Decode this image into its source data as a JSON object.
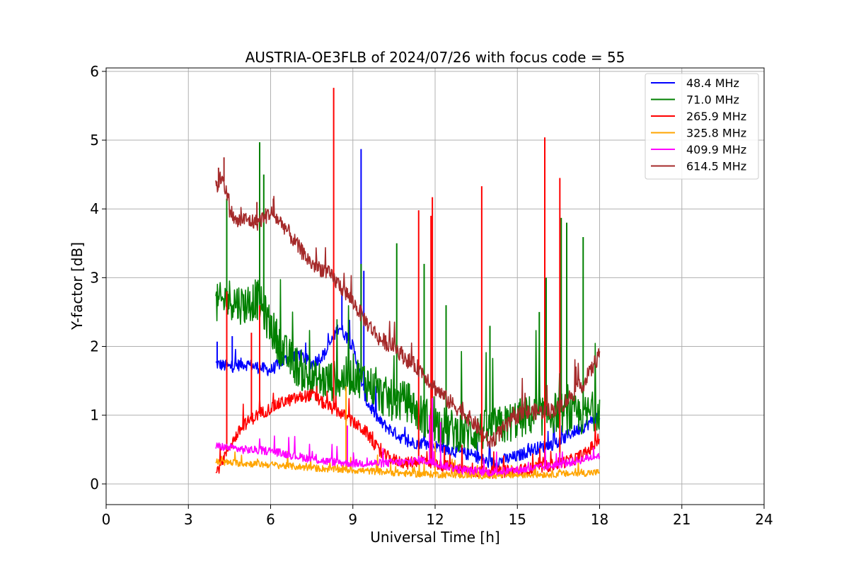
{
  "chart_data": {
    "type": "line",
    "title": "AUSTRIA-OE3FLB of 2024/07/26 with focus code = 55",
    "xlabel": "Universal Time [h]",
    "ylabel": "Y-factor [dB]",
    "xlim": [
      0,
      24
    ],
    "ylim": [
      -0.3,
      6.05
    ],
    "xticks": [
      0,
      3,
      6,
      9,
      12,
      15,
      18,
      21,
      24
    ],
    "xtick_labels": [
      "0",
      "3",
      "6",
      "9",
      "12",
      "15",
      "18",
      "21",
      "24"
    ],
    "yticks": [
      0,
      1,
      2,
      3,
      4,
      5,
      6
    ],
    "ytick_labels": [
      "0",
      "1",
      "2",
      "3",
      "4",
      "5",
      "6"
    ],
    "grid": true,
    "legend_position": "top-right",
    "series": [
      {
        "name": "48.4 MHz",
        "legend_label": " 48.4 MHz",
        "color": "#0000ff",
        "noise": 0.09,
        "x": [
          4.0,
          4.5,
          5.0,
          5.5,
          6.0,
          6.5,
          7.0,
          7.5,
          8.0,
          8.5,
          9.0,
          9.5,
          10.0,
          10.5,
          11.0,
          11.5,
          12.0,
          12.5,
          13.0,
          13.5,
          14.0,
          14.5,
          15.0,
          15.5,
          16.0,
          16.5,
          17.0,
          17.5,
          18.0
        ],
        "y": [
          1.75,
          1.7,
          1.75,
          1.7,
          1.65,
          1.8,
          1.9,
          1.75,
          1.9,
          2.3,
          2.0,
          1.2,
          0.9,
          0.75,
          0.6,
          0.6,
          0.55,
          0.5,
          0.45,
          0.4,
          0.3,
          0.35,
          0.4,
          0.5,
          0.55,
          0.6,
          0.75,
          0.85,
          1.0
        ],
        "spikes": [
          [
            9.3,
            4.87
          ],
          [
            4.05,
            2.07
          ],
          [
            9.4,
            3.1
          ],
          [
            8.6,
            2.8
          ],
          [
            4.6,
            2.15
          ]
        ]
      },
      {
        "name": "71.0 MHz",
        "legend_label": " 71.0 MHz",
        "color": "#008000",
        "noise": 0.3,
        "x": [
          4.0,
          4.5,
          5.0,
          5.5,
          6.0,
          6.5,
          7.0,
          7.5,
          8.0,
          8.5,
          9.0,
          9.5,
          10.0,
          10.5,
          11.0,
          11.5,
          12.0,
          12.5,
          13.0,
          13.5,
          14.0,
          14.5,
          15.0,
          15.5,
          16.0,
          16.5,
          17.0,
          17.5,
          18.0
        ],
        "y": [
          2.6,
          2.7,
          2.6,
          2.7,
          2.3,
          1.9,
          1.7,
          1.5,
          1.5,
          1.5,
          1.6,
          1.5,
          1.3,
          1.2,
          1.2,
          1.0,
          0.9,
          0.8,
          0.75,
          0.75,
          0.8,
          0.85,
          0.95,
          1.0,
          1.0,
          1.05,
          1.0,
          1.0,
          1.1
        ],
        "spikes": [
          [
            5.6,
            4.97
          ],
          [
            4.4,
            4.15
          ],
          [
            5.75,
            4.5
          ],
          [
            9.3,
            3.2
          ],
          [
            10.6,
            3.5
          ],
          [
            11.6,
            3.2
          ],
          [
            12.4,
            2.6
          ],
          [
            16.6,
            3.87
          ],
          [
            16.8,
            3.8
          ],
          [
            17.4,
            3.59
          ],
          [
            16.05,
            3.0
          ],
          [
            15.8,
            2.5
          ],
          [
            14.0,
            2.3
          ]
        ]
      },
      {
        "name": "265.9 MHz",
        "legend_label": "265.9 MHz",
        "color": "#ff0000",
        "noise": 0.09,
        "x": [
          4.0,
          4.5,
          5.0,
          5.5,
          6.0,
          6.5,
          7.0,
          7.5,
          8.0,
          8.5,
          9.0,
          9.5,
          10.0,
          10.5,
          11.0,
          11.5,
          12.0,
          12.5,
          13.0,
          13.5,
          14.0,
          14.5,
          15.0,
          15.5,
          16.0,
          16.5,
          17.0,
          17.5,
          18.0
        ],
        "y": [
          0.15,
          0.55,
          0.85,
          1.0,
          1.1,
          1.2,
          1.25,
          1.3,
          1.15,
          1.05,
          0.9,
          0.75,
          0.45,
          0.35,
          0.3,
          0.35,
          0.3,
          0.25,
          0.2,
          0.18,
          0.17,
          0.18,
          0.2,
          0.22,
          0.25,
          0.3,
          0.35,
          0.45,
          0.65
        ],
        "spikes": [
          [
            8.3,
            5.76
          ],
          [
            16.0,
            5.04
          ],
          [
            16.55,
            4.45
          ],
          [
            13.7,
            4.33
          ],
          [
            11.9,
            4.17
          ],
          [
            11.4,
            3.98
          ],
          [
            4.4,
            2.8
          ],
          [
            5.3,
            2.2
          ],
          [
            5.6,
            2.6
          ],
          [
            11.85,
            3.9
          ]
        ]
      },
      {
        "name": "325.8 MHz",
        "legend_label": "325.8 MHz",
        "color": "#ffa500",
        "noise": 0.05,
        "x": [
          4.0,
          5.0,
          6.0,
          7.0,
          8.0,
          9.0,
          10.0,
          11.0,
          12.0,
          13.0,
          14.0,
          15.0,
          16.0,
          17.0,
          18.0
        ],
        "y": [
          0.32,
          0.3,
          0.28,
          0.25,
          0.22,
          0.2,
          0.18,
          0.15,
          0.14,
          0.13,
          0.12,
          0.13,
          0.14,
          0.15,
          0.17
        ],
        "spikes": [
          [
            8.75,
            1.42
          ],
          [
            12.0,
            0.6
          ]
        ]
      },
      {
        "name": "409.9 MHz",
        "legend_label": "409.9 MHz",
        "color": "#ff00ff",
        "noise": 0.06,
        "x": [
          4.0,
          5.0,
          6.0,
          7.0,
          8.0,
          9.0,
          10.0,
          11.0,
          11.5,
          12.0,
          12.5,
          13.0,
          14.0,
          15.0,
          16.0,
          17.0,
          18.0
        ],
        "y": [
          0.55,
          0.5,
          0.48,
          0.4,
          0.33,
          0.3,
          0.3,
          0.32,
          0.35,
          0.3,
          0.25,
          0.2,
          0.17,
          0.2,
          0.25,
          0.32,
          0.42
        ],
        "spikes": [
          [
            11.9,
            1.25
          ],
          [
            11.8,
            1.0
          ],
          [
            8.8,
            0.85
          ],
          [
            12.2,
            0.9
          ]
        ]
      },
      {
        "name": "614.5 MHz",
        "legend_label": "614.5 MHz",
        "color": "#a52a2a",
        "noise": 0.12,
        "x": [
          4.0,
          4.25,
          4.5,
          4.75,
          5.0,
          5.5,
          6.0,
          6.5,
          7.0,
          7.5,
          8.0,
          8.5,
          9.0,
          9.5,
          10.0,
          10.5,
          11.0,
          11.5,
          12.0,
          12.5,
          13.0,
          13.5,
          14.0,
          14.5,
          15.0,
          15.5,
          16.0,
          16.5,
          17.0,
          17.5,
          18.0
        ],
        "y": [
          4.3,
          4.5,
          4.0,
          3.8,
          3.85,
          3.8,
          3.95,
          3.75,
          3.45,
          3.2,
          3.1,
          2.9,
          2.65,
          2.35,
          2.1,
          2.0,
          1.8,
          1.65,
          1.4,
          1.2,
          1.05,
          0.85,
          0.6,
          0.8,
          1.0,
          1.05,
          1.05,
          1.1,
          1.3,
          1.5,
          1.9
        ],
        "spikes": [
          [
            4.3,
            4.75
          ],
          [
            4.1,
            4.6
          ],
          [
            5.5,
            4.1
          ],
          [
            6.1,
            4.15
          ]
        ]
      }
    ]
  }
}
